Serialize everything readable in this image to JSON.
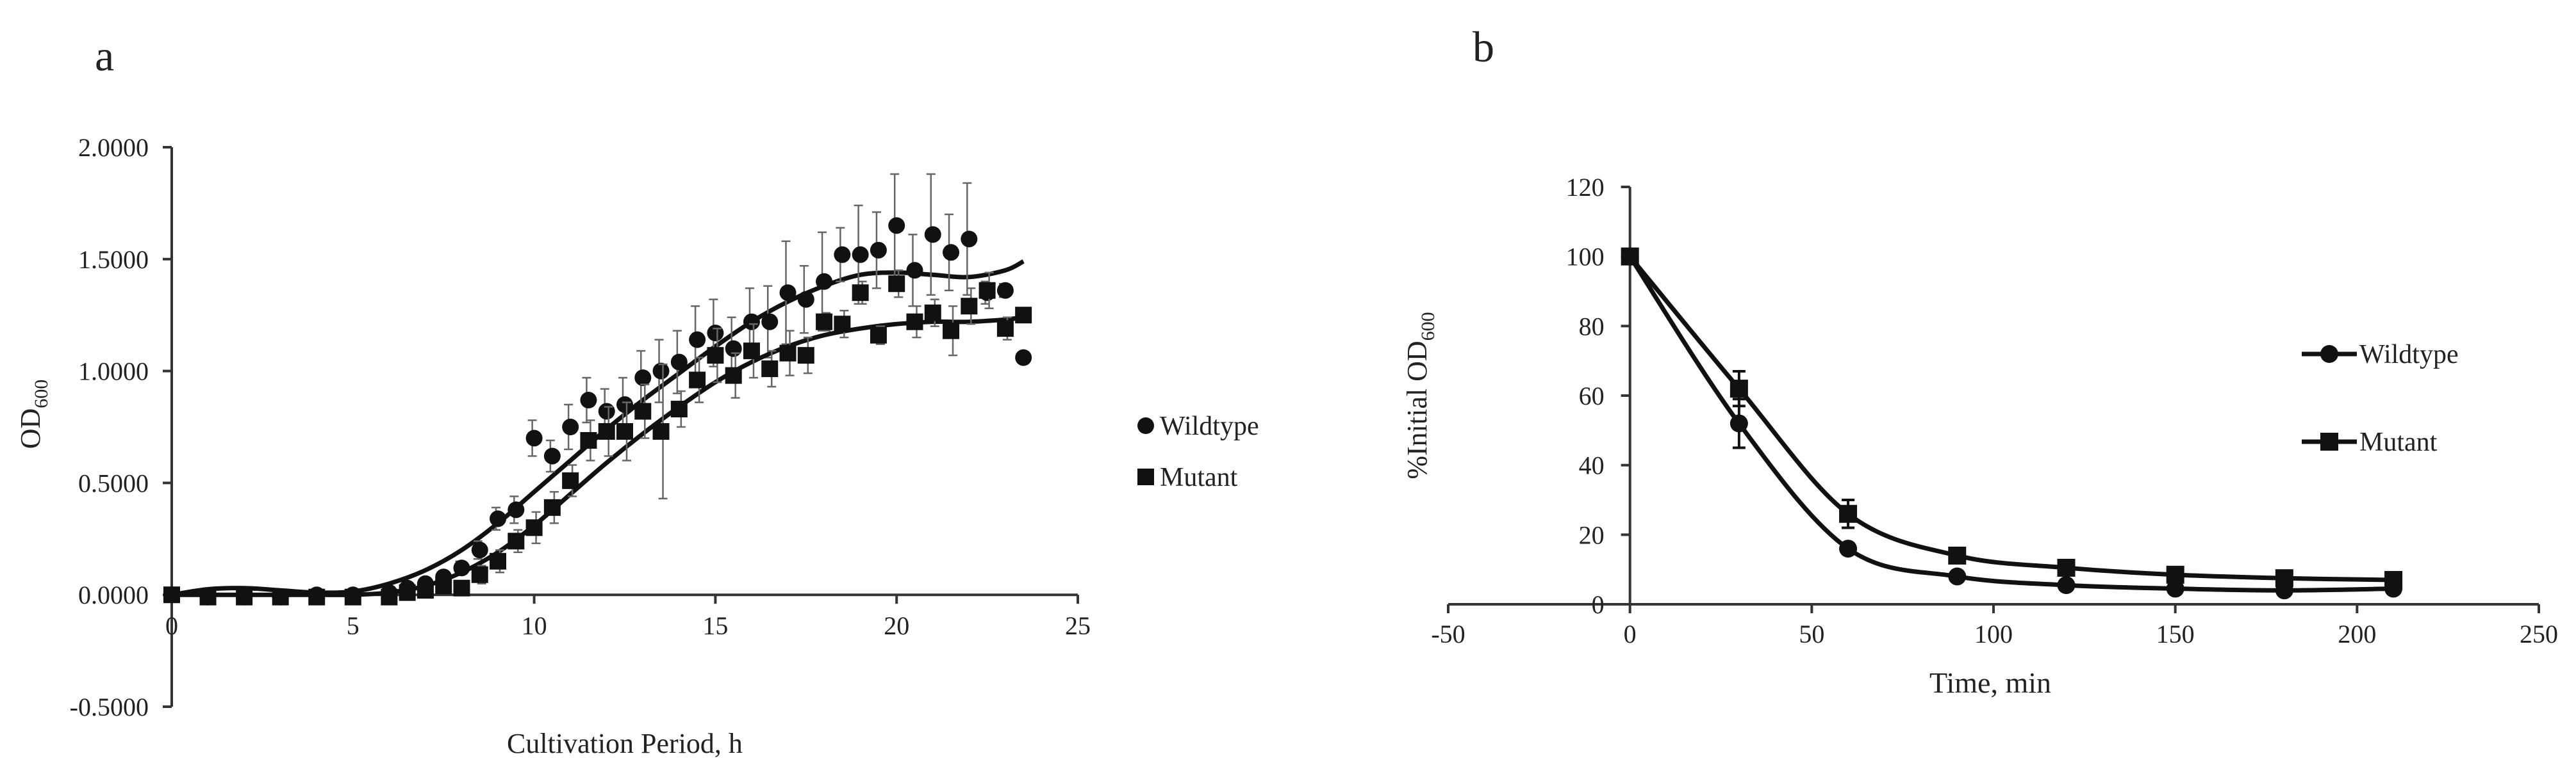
{
  "chart_data": [
    {
      "panel": "a",
      "type": "scatter",
      "title": "",
      "xlabel": "Cultivation Period, h",
      "ylabel": "OD",
      "ylabel_sub": "600",
      "xlim": [
        0,
        25
      ],
      "ylim": [
        -0.5,
        2.0
      ],
      "xticks": [
        "0",
        "5",
        "10",
        "15",
        "20",
        "25"
      ],
      "yticks": [
        "-0.5000",
        "0.0000",
        "0.5000",
        "1.0000",
        "1.5000",
        "2.0000"
      ],
      "legend": [
        "Wildtype",
        "Mutant"
      ],
      "legend_position": "right",
      "series": [
        {
          "name": "Wildtype",
          "marker": "circle",
          "x": [
            0,
            1,
            2,
            3,
            4,
            5,
            6,
            6.5,
            7,
            7.5,
            8,
            8.5,
            9,
            9.5,
            10,
            10.5,
            11,
            11.5,
            12,
            12.5,
            13,
            13.5,
            14,
            14.5,
            15,
            15.5,
            16,
            16.5,
            17,
            17.5,
            18,
            18.5,
            19,
            19.5,
            20,
            20.5,
            21,
            21.5,
            22,
            22.5,
            23,
            23.5
          ],
          "y": [
            0.0,
            -0.01,
            -0.01,
            -0.01,
            0.0,
            0.0,
            0.01,
            0.03,
            0.05,
            0.08,
            0.12,
            0.2,
            0.34,
            0.38,
            0.7,
            0.62,
            0.75,
            0.87,
            0.82,
            0.85,
            0.97,
            1.0,
            1.04,
            1.14,
            1.17,
            1.1,
            1.22,
            1.22,
            1.35,
            1.32,
            1.4,
            1.52,
            1.52,
            1.54,
            1.65,
            1.45,
            1.61,
            1.53,
            1.59,
            1.35,
            1.36,
            1.06
          ],
          "err": [
            0,
            0,
            0,
            0,
            0,
            0,
            0,
            0,
            0,
            0,
            0.03,
            0.04,
            0.05,
            0.06,
            0.08,
            0.07,
            0.1,
            0.1,
            0.1,
            0.12,
            0.12,
            0.14,
            0.14,
            0.15,
            0.15,
            0.14,
            0.15,
            0.16,
            0.23,
            0.15,
            0.22,
            0.12,
            0.22,
            0.17,
            0.23,
            0.16,
            0.27,
            0.17,
            0.25,
            0.05,
            0.03,
            0.02
          ],
          "fit": [
            [
              0,
              0.0
            ],
            [
              1,
              0.025
            ],
            [
              2,
              0.03
            ],
            [
              3,
              0.02
            ],
            [
              4,
              0.01
            ],
            [
              5,
              0.015
            ],
            [
              6,
              0.05
            ],
            [
              7,
              0.11
            ],
            [
              8,
              0.2
            ],
            [
              9,
              0.32
            ],
            [
              10,
              0.46
            ],
            [
              11,
              0.6
            ],
            [
              12,
              0.74
            ],
            [
              13,
              0.87
            ],
            [
              14,
              0.99
            ],
            [
              15,
              1.11
            ],
            [
              16,
              1.22
            ],
            [
              17,
              1.31
            ],
            [
              18,
              1.38
            ],
            [
              19,
              1.43
            ],
            [
              20,
              1.44
            ],
            [
              21,
              1.43
            ],
            [
              22,
              1.42
            ],
            [
              23,
              1.45
            ],
            [
              23.5,
              1.49
            ]
          ]
        },
        {
          "name": "Mutant",
          "marker": "square",
          "x": [
            0,
            1,
            2,
            3,
            4,
            5,
            6,
            6.5,
            7,
            7.5,
            8,
            8.5,
            9,
            9.5,
            10,
            10.5,
            11,
            11.5,
            12,
            12.5,
            13,
            13.5,
            14,
            14.5,
            15,
            15.5,
            16,
            16.5,
            17,
            17.5,
            18,
            18.5,
            19,
            19.5,
            20,
            20.5,
            21,
            21.5,
            22,
            22.5,
            23,
            23.5
          ],
          "y": [
            0.0,
            -0.01,
            -0.01,
            -0.01,
            -0.01,
            -0.01,
            -0.01,
            0.01,
            0.02,
            0.04,
            0.03,
            0.09,
            0.15,
            0.24,
            0.3,
            0.39,
            0.51,
            0.69,
            0.73,
            0.73,
            0.82,
            0.73,
            0.83,
            0.96,
            1.07,
            0.98,
            1.09,
            1.01,
            1.08,
            1.07,
            1.22,
            1.21,
            1.35,
            1.16,
            1.39,
            1.22,
            1.26,
            1.18,
            1.29,
            1.36,
            1.19,
            1.25
          ],
          "err": [
            0,
            0,
            0,
            0,
            0,
            0,
            0,
            0,
            0,
            0,
            0.03,
            0.04,
            0.05,
            0.05,
            0.07,
            0.07,
            0.07,
            0.09,
            0.11,
            0.13,
            0.12,
            0.3,
            0.08,
            0.1,
            0.12,
            0.1,
            0.12,
            0.08,
            0.1,
            0.08,
            0.04,
            0.06,
            0.05,
            0.04,
            0.06,
            0.07,
            0.06,
            0.11,
            0.08,
            0.08,
            0.05,
            0.03
          ],
          "fit": [
            [
              0,
              0.0
            ],
            [
              1,
              0.0
            ],
            [
              2,
              0.0
            ],
            [
              3,
              0.0
            ],
            [
              4,
              0.0
            ],
            [
              5,
              0.0
            ],
            [
              6,
              0.01
            ],
            [
              7,
              0.04
            ],
            [
              8,
              0.1
            ],
            [
              9,
              0.19
            ],
            [
              10,
              0.31
            ],
            [
              11,
              0.45
            ],
            [
              12,
              0.59
            ],
            [
              13,
              0.72
            ],
            [
              14,
              0.84
            ],
            [
              15,
              0.95
            ],
            [
              16,
              1.04
            ],
            [
              17,
              1.11
            ],
            [
              18,
              1.16
            ],
            [
              19,
              1.19
            ],
            [
              20,
              1.21
            ],
            [
              21,
              1.22
            ],
            [
              22,
              1.22
            ],
            [
              23,
              1.23
            ],
            [
              23.5,
              1.24
            ]
          ]
        }
      ]
    },
    {
      "panel": "b",
      "type": "line",
      "title": "",
      "xlabel": "Time, min",
      "ylabel": "%Initial OD",
      "ylabel_sub": "600",
      "xlim": [
        -50,
        250
      ],
      "ylim": [
        0,
        120
      ],
      "xticks": [
        "-50",
        "0",
        "50",
        "100",
        "150",
        "200",
        "250"
      ],
      "yticks": [
        "0",
        "20",
        "40",
        "60",
        "80",
        "100",
        "120"
      ],
      "legend": [
        "Wildtype",
        "Mutant"
      ],
      "legend_position": "right",
      "series": [
        {
          "name": "Wildtype",
          "marker": "circle",
          "x": [
            0,
            30,
            60,
            90,
            120,
            150,
            180,
            210
          ],
          "y": [
            100,
            52,
            16,
            8,
            5.5,
            4.5,
            4,
            4.5
          ],
          "err": [
            0,
            7,
            1.5,
            1,
            0.5,
            0.5,
            0.5,
            0.5
          ]
        },
        {
          "name": "Mutant",
          "marker": "square",
          "x": [
            0,
            30,
            60,
            90,
            120,
            150,
            180,
            210
          ],
          "y": [
            100,
            62,
            26,
            14,
            10.5,
            8.5,
            7.5,
            7
          ],
          "err": [
            0,
            5,
            4,
            1.5,
            1,
            1,
            1,
            0.8
          ]
        }
      ]
    }
  ]
}
